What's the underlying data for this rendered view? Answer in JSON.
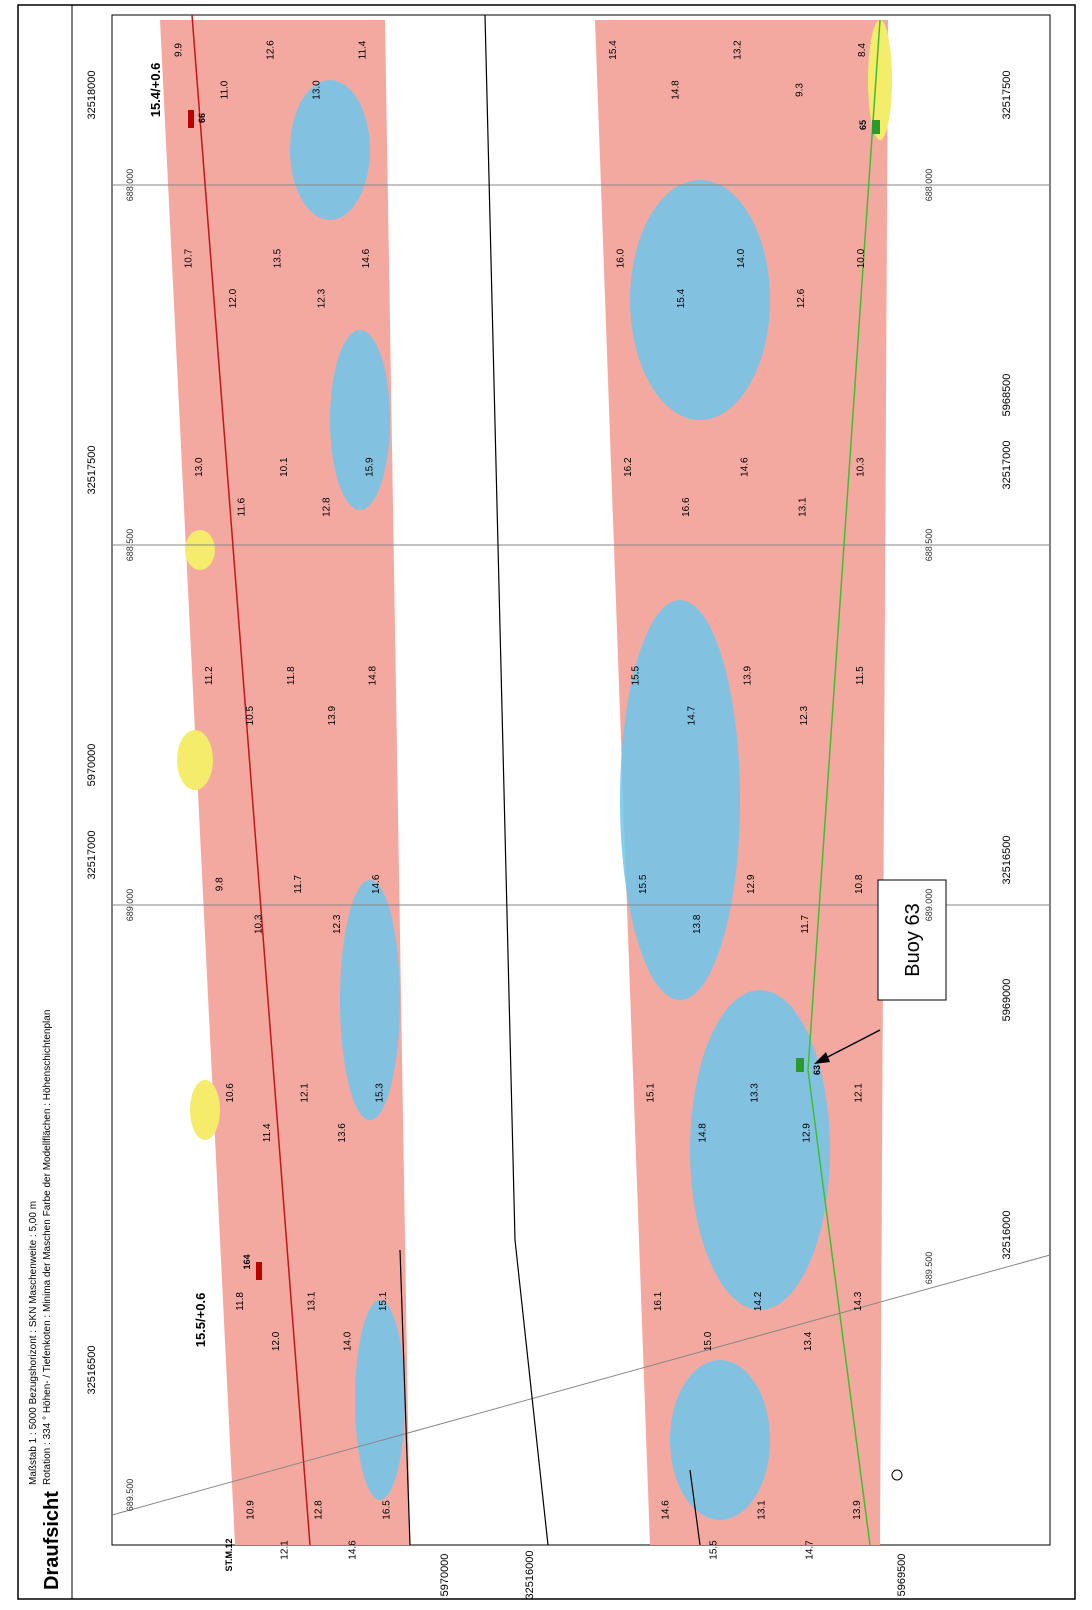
{
  "header": {
    "title": "Draufsicht",
    "line1": "Maßstab 1 : 5000   Bezugshorizont : SKN   Maschenweite : 5,00 m",
    "line2": "Rotation : 334 °   Höhen- / Tiefenkoten : Minima der Maschen   Farbe der Modellflächen : Höhenschichtenplan"
  },
  "map": {
    "axis_labels": [
      "32518000",
      "32517500",
      "5970000",
      "32517000",
      "32516500",
      "32517500",
      "5968500",
      "32517000",
      "32516500",
      "5969000",
      "32516000",
      "5970000",
      "32516000",
      "5969500"
    ],
    "grid_labels": [
      "688.000",
      "688.500",
      "689.000",
      "689.500",
      "688.000",
      "688.500",
      "689.000",
      "689.500"
    ],
    "annotations": {
      "upper_level": "15.4/+0.6",
      "lower_level": "15.5/+0.6",
      "station": "ST.M.12",
      "marker_upper": "66",
      "marker_lower": "164",
      "marker_buoy": "63",
      "marker_right": "65"
    },
    "callout": "Buoy 63",
    "soundings": {
      "upper": [
        "9.9",
        "11.0",
        "12.6",
        "13.0",
        "11.4",
        "10.7",
        "12.0",
        "13.5",
        "12.3",
        "14.6",
        "13.0",
        "11.6",
        "10.1",
        "12.8",
        "15.9",
        "11.2",
        "10.5",
        "11.8",
        "13.9",
        "14.8",
        "9.8",
        "10.3",
        "11.7",
        "12.3",
        "14.6",
        "10.6",
        "11.4",
        "12.1",
        "13.6",
        "15.3",
        "11.8",
        "12.0",
        "13.1",
        "14.0",
        "15.1",
        "10.9",
        "12.1",
        "12.8",
        "14.6",
        "16.5"
      ],
      "lower": [
        "15.4",
        "14.8",
        "13.2",
        "9.3",
        "8.4",
        "16.0",
        "15.4",
        "14.0",
        "12.6",
        "10.0",
        "16.2",
        "16.6",
        "14.6",
        "13.1",
        "10.3",
        "15.5",
        "14.7",
        "13.9",
        "12.3",
        "11.5",
        "15.5",
        "13.8",
        "12.9",
        "11.7",
        "10.8",
        "15.1",
        "14.8",
        "13.3",
        "12.9",
        "12.1",
        "16.1",
        "15.0",
        "14.2",
        "13.4",
        "14.3",
        "14.6",
        "15.5",
        "13.1",
        "14.7",
        "13.9"
      ]
    }
  }
}
